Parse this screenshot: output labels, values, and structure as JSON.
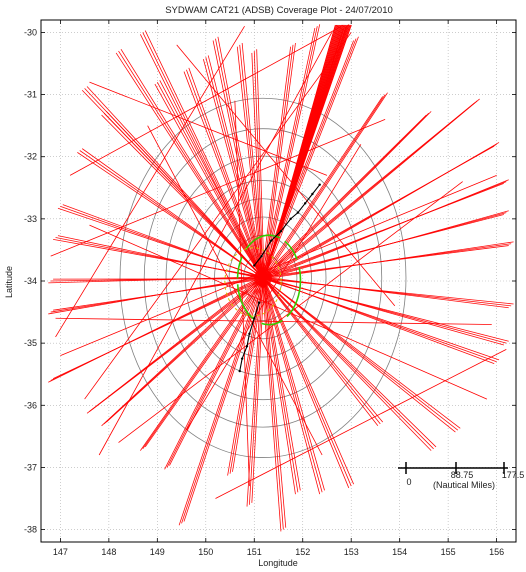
{
  "chart_data": {
    "type": "scatter",
    "title": "SYDWAM CAT21 (ADSB) Coverage Plot - 24/07/2010",
    "xlabel": "Longitude",
    "ylabel": "Latitude",
    "xlim": [
      146.6,
      156.4
    ],
    "ylim": [
      -38.2,
      -29.8
    ],
    "xticks": [
      147,
      148,
      149,
      150,
      151,
      152,
      153,
      154,
      155,
      156
    ],
    "yticks": [
      -30,
      -31,
      -32,
      -33,
      -34,
      -35,
      -36,
      -37,
      -38
    ],
    "grid": true,
    "center": {
      "lon": 151.18,
      "lat": -33.95
    },
    "range_rings_deg": [
      0.4,
      0.7,
      1.0,
      1.3,
      1.6,
      2.0,
      2.45,
      2.95
    ],
    "colors": {
      "tracks": "#ff0000",
      "rings": "#808080",
      "airport_boundary": "#33cc00",
      "dashed_boundary": "#d4c000",
      "local_tracks": "#000000",
      "grid": "#b0b0b0",
      "axes": "#000000"
    },
    "scale_bar": {
      "labels": [
        "0",
        "88.75",
        "177.5"
      ],
      "unit": "(Nautical Miles)"
    },
    "series": [
      {
        "type": "radial_tracks",
        "color": "#ff0000",
        "endpoints": [
          [
            148.7,
            -30.0
          ],
          [
            149.0,
            -30.8
          ],
          [
            149.6,
            -30.6
          ],
          [
            150.2,
            -30.1
          ],
          [
            150.7,
            -30.2
          ],
          [
            151.0,
            -30.3
          ],
          [
            151.8,
            -30.2
          ],
          [
            152.3,
            -29.9
          ],
          [
            152.9,
            -29.9
          ],
          [
            153.1,
            -30.1
          ],
          [
            153.7,
            -31.0
          ],
          [
            154.6,
            -31.3
          ],
          [
            155.6,
            -31.1
          ],
          [
            156.0,
            -31.8
          ],
          [
            156.2,
            -32.4
          ],
          [
            156.2,
            -32.9
          ],
          [
            156.3,
            -33.4
          ],
          [
            156.3,
            -34.4
          ],
          [
            156.2,
            -35.0
          ],
          [
            156.0,
            -35.3
          ],
          [
            155.2,
            -36.4
          ],
          [
            154.7,
            -36.7
          ],
          [
            153.6,
            -36.3
          ],
          [
            153.0,
            -37.3
          ],
          [
            152.4,
            -37.4
          ],
          [
            151.9,
            -37.4
          ],
          [
            151.6,
            -38.0
          ],
          [
            150.9,
            -37.6
          ],
          [
            150.5,
            -37.1
          ],
          [
            149.5,
            -37.9
          ],
          [
            149.2,
            -37.0
          ],
          [
            148.7,
            -36.7
          ],
          [
            147.9,
            -36.3
          ],
          [
            147.6,
            -36.1
          ],
          [
            146.8,
            -35.6
          ],
          [
            146.8,
            -34.5
          ],
          [
            146.8,
            -34.0
          ],
          [
            146.9,
            -33.3
          ],
          [
            147.0,
            -32.8
          ],
          [
            147.4,
            -31.9
          ],
          [
            147.9,
            -31.3
          ],
          [
            147.5,
            -30.9
          ],
          [
            148.2,
            -30.3
          ],
          [
            150.0,
            -30.4
          ]
        ]
      },
      {
        "type": "crossing_tracks",
        "color": "#ff0000",
        "segments": [
          [
            [
              147.6,
              -30.8
            ],
            [
              152.5,
              -32.3
            ]
          ],
          [
            [
              147.2,
              -32.3
            ],
            [
              152.8,
              -29.9
            ]
          ],
          [
            [
              146.9,
              -34.9
            ],
            [
              150.8,
              -29.9
            ]
          ],
          [
            [
              147.5,
              -35.9
            ],
            [
              153.0,
              -30.0
            ]
          ],
          [
            [
              147.8,
              -36.8
            ],
            [
              152.6,
              -30.0
            ]
          ],
          [
            [
              149.6,
              -36.4
            ],
            [
              153.2,
              -31.8
            ]
          ],
          [
            [
              146.8,
              -33.6
            ],
            [
              153.7,
              -31.4
            ]
          ],
          [
            [
              146.9,
              -34.6
            ],
            [
              155.9,
              -34.7
            ]
          ],
          [
            [
              148.2,
              -36.6
            ],
            [
              155.3,
              -32.4
            ]
          ],
          [
            [
              147.0,
              -35.2
            ],
            [
              156.0,
              -32.3
            ]
          ],
          [
            [
              150.2,
              -37.5
            ],
            [
              156.2,
              -35.1
            ]
          ],
          [
            [
              149.4,
              -30.2
            ],
            [
              153.9,
              -34.4
            ]
          ],
          [
            [
              147.6,
              -33.1
            ],
            [
              155.8,
              -35.9
            ]
          ],
          [
            [
              148.8,
              -31.5
            ],
            [
              152.4,
              -36.8
            ]
          ],
          [
            [
              150.6,
              -31.1
            ],
            [
              150.9,
              -37.3
            ]
          ]
        ]
      },
      {
        "type": "local_tracks",
        "color": "#000000",
        "points": [
          [
            151.0,
            -33.75
          ],
          [
            151.15,
            -33.6
          ],
          [
            151.35,
            -33.35
          ],
          [
            151.55,
            -33.2
          ],
          [
            151.75,
            -33.0
          ],
          [
            151.9,
            -32.9
          ],
          [
            152.05,
            -32.75
          ],
          [
            152.2,
            -32.6
          ],
          [
            152.35,
            -32.45
          ],
          [
            151.1,
            -34.35
          ],
          [
            151.0,
            -34.6
          ],
          [
            150.9,
            -34.85
          ],
          [
            150.85,
            -35.05
          ],
          [
            150.75,
            -35.25
          ],
          [
            150.7,
            -35.45
          ]
        ]
      }
    ]
  }
}
